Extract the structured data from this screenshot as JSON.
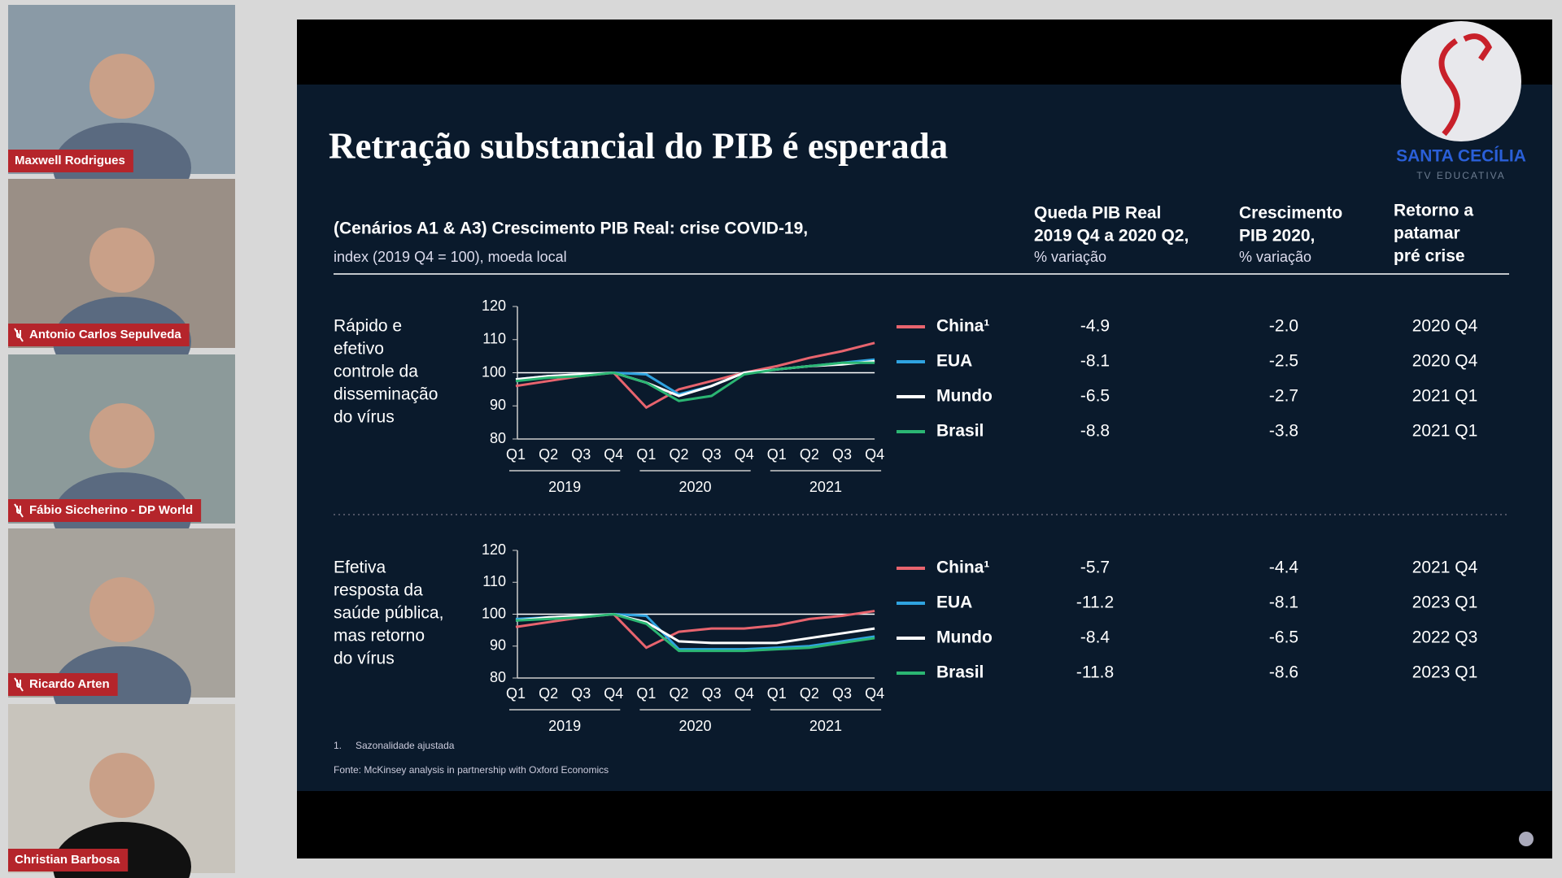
{
  "participants": [
    {
      "name": "Maxwell Rodrigues",
      "muted": false
    },
    {
      "name": "Antonio Carlos Sepulveda",
      "muted": true
    },
    {
      "name": "Fábio Siccherino - DP World",
      "muted": true
    },
    {
      "name": "Ricardo Arten",
      "muted": true
    },
    {
      "name": "Christian Barbosa",
      "muted": false
    }
  ],
  "slide": {
    "title": "Retração substancial do PIB é esperada",
    "logo": "SANTA CECÍLIA",
    "logo_sub": "TV EDUCATIVA",
    "subtitle": "(Cenários A1 & A3) Crescimento PIB Real: crise COVID-19,",
    "subtitle_note": "index (2019 Q4 = 100), moeda local",
    "columns": [
      {
        "lines": [
          "Queda PIB Real",
          "2019 Q4 a 2020 Q2,"
        ],
        "note": "% variação"
      },
      {
        "lines": [
          "Crescimento",
          "PIB 2020,"
        ],
        "note": "% variação"
      },
      {
        "lines": [
          "Retorno a",
          "patamar",
          "pré crise"
        ]
      }
    ],
    "footnote_number": "1.",
    "footnote": "Sazonalidade ajustada",
    "source": "Fonte: McKinsey analysis in partnership with Oxford Economics"
  },
  "chart_data": [
    {
      "type": "line",
      "label_lines": [
        "Rápido e",
        "efetivo",
        "controle da",
        "disseminação",
        "do vírus"
      ],
      "categories": [
        "Q1",
        "Q2",
        "Q3",
        "Q4",
        "Q1",
        "Q2",
        "Q3",
        "Q4",
        "Q1",
        "Q2",
        "Q3",
        "Q4"
      ],
      "x_groups": [
        "2019",
        "2020",
        "2021"
      ],
      "ylim": [
        80,
        120
      ],
      "yticks": [
        80,
        90,
        100,
        110,
        120
      ],
      "reference_line": 100,
      "series": [
        {
          "name": "China¹",
          "color": "#e8646e",
          "values": [
            96,
            97.5,
            99,
            100,
            89.5,
            95,
            97.5,
            100,
            102,
            104.5,
            106.5,
            109
          ],
          "stats": [
            "-4.9",
            "-2.0",
            "2020 Q4"
          ]
        },
        {
          "name": "EUA",
          "color": "#2fa3e0",
          "values": [
            98,
            99,
            99.5,
            100,
            99.5,
            93.5,
            96,
            100,
            101,
            102,
            103,
            104
          ],
          "stats": [
            "-8.1",
            "-2.5",
            "2020 Q4"
          ]
        },
        {
          "name": "Mundo",
          "color": "#ffffff",
          "values": [
            98,
            99,
            99.5,
            100,
            97,
            93,
            96,
            100,
            101,
            102,
            102.5,
            103.5
          ],
          "stats": [
            "-6.5",
            "-2.7",
            "2021 Q1"
          ]
        },
        {
          "name": "Brasil",
          "color": "#2bb673",
          "values": [
            97.5,
            98.5,
            99,
            100,
            97,
            91.5,
            93,
            99.5,
            101,
            102,
            103,
            103
          ],
          "stats": [
            "-8.8",
            "-3.8",
            "2021 Q1"
          ]
        }
      ]
    },
    {
      "type": "line",
      "label_lines": [
        "Efetiva",
        "resposta da",
        "saúde pública,",
        "mas retorno",
        "do vírus"
      ],
      "categories": [
        "Q1",
        "Q2",
        "Q3",
        "Q4",
        "Q1",
        "Q2",
        "Q3",
        "Q4",
        "Q1",
        "Q2",
        "Q3",
        "Q4"
      ],
      "x_groups": [
        "2019",
        "2020",
        "2021"
      ],
      "ylim": [
        80,
        120
      ],
      "yticks": [
        80,
        90,
        100,
        110,
        120
      ],
      "reference_line": 100,
      "series": [
        {
          "name": "China¹",
          "color": "#e8646e",
          "values": [
            96,
            97.5,
            99,
            100,
            89.5,
            94.5,
            95.5,
            95.5,
            96.5,
            98.5,
            99.5,
            101
          ],
          "stats": [
            "-5.7",
            "-4.4",
            "2021 Q4"
          ]
        },
        {
          "name": "EUA",
          "color": "#2fa3e0",
          "values": [
            98.5,
            99,
            99.5,
            100,
            99.5,
            89,
            89,
            89,
            89.5,
            90,
            91.5,
            93
          ],
          "stats": [
            "-11.2",
            "-8.1",
            "2023 Q1"
          ]
        },
        {
          "name": "Mundo",
          "color": "#ffffff",
          "values": [
            98,
            99,
            99.5,
            100,
            97.5,
            91.5,
            91,
            91,
            91,
            92.5,
            94,
            95.5
          ],
          "stats": [
            "-8.4",
            "-6.5",
            "2022 Q3"
          ]
        },
        {
          "name": "Brasil",
          "color": "#2bb673",
          "values": [
            98,
            98.5,
            99,
            100,
            97,
            88.5,
            88.5,
            88.5,
            89,
            89.5,
            91,
            92.5
          ],
          "stats": [
            "-11.8",
            "-8.6",
            "2023 Q1"
          ]
        }
      ]
    }
  ]
}
